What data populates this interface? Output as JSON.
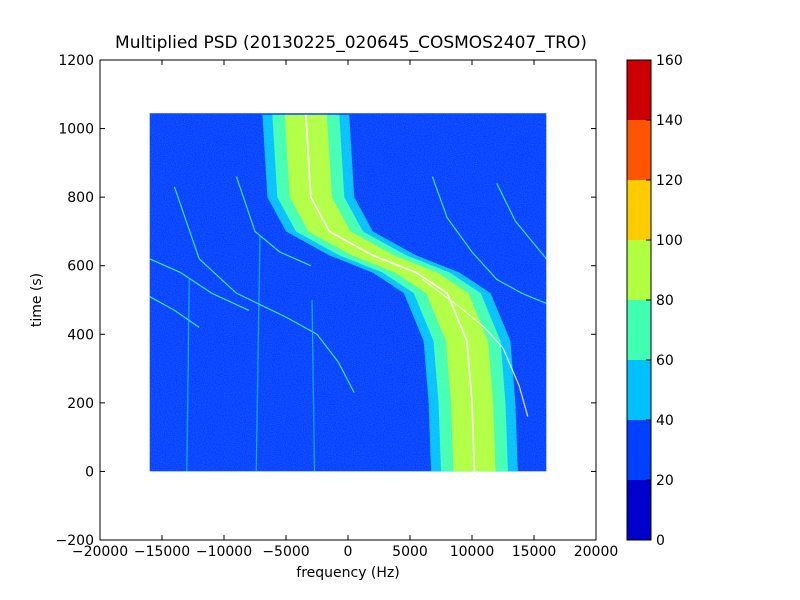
{
  "chart_data": {
    "type": "heatmap",
    "title": "Multiplied PSD (20130225_020645_COSMOS2407_TRO)",
    "xlabel": "frequency (Hz)",
    "ylabel": "time (s)",
    "xlim": [
      -20000,
      20000
    ],
    "ylim": [
      -200,
      1200
    ],
    "xticks": [
      -20000,
      -15000,
      -10000,
      -5000,
      0,
      5000,
      10000,
      15000,
      20000
    ],
    "xtick_labels": [
      "−20000",
      "−15000",
      "−10000",
      "−5000",
      "0",
      "5000",
      "10000",
      "15000",
      "20000"
    ],
    "yticks": [
      -200,
      0,
      200,
      400,
      600,
      800,
      1000,
      1200
    ],
    "ytick_labels": [
      "−200",
      "0",
      "200",
      "400",
      "600",
      "800",
      "1000",
      "1200"
    ],
    "data_extent": {
      "x": [
        -16000,
        16000
      ],
      "y": [
        0,
        1045
      ]
    },
    "colorbar": {
      "ticks": [
        0,
        20,
        40,
        60,
        80,
        100,
        120,
        140,
        160
      ],
      "tick_labels": [
        "0",
        "20",
        "40",
        "60",
        "80",
        "100",
        "120",
        "140",
        "160"
      ],
      "levels": [
        {
          "from": 0,
          "to": 20,
          "color": "#0000cc"
        },
        {
          "from": 20,
          "to": 40,
          "color": "#0040ff"
        },
        {
          "from": 40,
          "to": 60,
          "color": "#00c0ff"
        },
        {
          "from": 60,
          "to": 80,
          "color": "#40ffb0"
        },
        {
          "from": 80,
          "to": 100,
          "color": "#b0ff40"
        },
        {
          "from": 100,
          "to": 120,
          "color": "#ffcc00"
        },
        {
          "from": 120,
          "to": 140,
          "color": "#ff5500"
        },
        {
          "from": 140,
          "to": 160,
          "color": "#cc0000"
        }
      ]
    },
    "background_level_color": "#0040ff",
    "main_signal": {
      "points": [
        [
          -3400,
          1040
        ],
        [
          -3000,
          800
        ],
        [
          -1500,
          700
        ],
        [
          2000,
          630
        ],
        [
          5500,
          580
        ],
        [
          8000,
          520
        ],
        [
          9600,
          380
        ],
        [
          10000,
          200
        ],
        [
          10200,
          0
        ]
      ],
      "bands": [
        {
          "halfwidth": 3500,
          "color": "#00c0ff"
        },
        {
          "halfwidth": 2700,
          "color": "#40ffb0"
        },
        {
          "halfwidth": 1700,
          "color": "#b0ff40"
        }
      ],
      "centerline_color": "#ffffff"
    },
    "faint_traces": [
      {
        "points": [
          [
            -14000,
            830
          ],
          [
            -12000,
            620
          ],
          [
            -9000,
            520
          ],
          [
            -5000,
            450
          ],
          [
            -2500,
            400
          ],
          [
            -800,
            320
          ],
          [
            500,
            230
          ]
        ],
        "color": "#40ffb0"
      },
      {
        "points": [
          [
            -9000,
            860
          ],
          [
            -7500,
            700
          ],
          [
            -5500,
            640
          ],
          [
            -3000,
            600
          ]
        ],
        "color": "#40ffb0"
      },
      {
        "points": [
          [
            -16000,
            620
          ],
          [
            -13500,
            580
          ],
          [
            -11000,
            520
          ],
          [
            -8000,
            470
          ]
        ],
        "color": "#40ffb0"
      },
      {
        "points": [
          [
            -16000,
            510
          ],
          [
            -14000,
            470
          ],
          [
            -12000,
            420
          ]
        ],
        "color": "#40ffb0"
      },
      {
        "points": [
          [
            6800,
            860
          ],
          [
            8000,
            740
          ],
          [
            10000,
            640
          ],
          [
            12000,
            560
          ],
          [
            14000,
            520
          ],
          [
            16000,
            490
          ]
        ],
        "color": "#40ffb0"
      },
      {
        "points": [
          [
            12000,
            840
          ],
          [
            13500,
            730
          ],
          [
            16000,
            620
          ]
        ],
        "color": "#40ffb0"
      },
      {
        "points": [
          [
            6000,
            560
          ],
          [
            9000,
            480
          ],
          [
            11000,
            420
          ],
          [
            12500,
            360
          ],
          [
            13800,
            250
          ],
          [
            14500,
            160
          ]
        ],
        "color": "#ffffff"
      },
      {
        "points": [
          [
            -13000,
            0
          ],
          [
            -12800,
            560
          ]
        ],
        "color": "#00c0ff"
      },
      {
        "points": [
          [
            -7400,
            0
          ],
          [
            -7100,
            690
          ]
        ],
        "color": "#00c0ff"
      },
      {
        "points": [
          [
            -2700,
            0
          ],
          [
            -2900,
            500
          ]
        ],
        "color": "#00c0ff"
      }
    ]
  }
}
